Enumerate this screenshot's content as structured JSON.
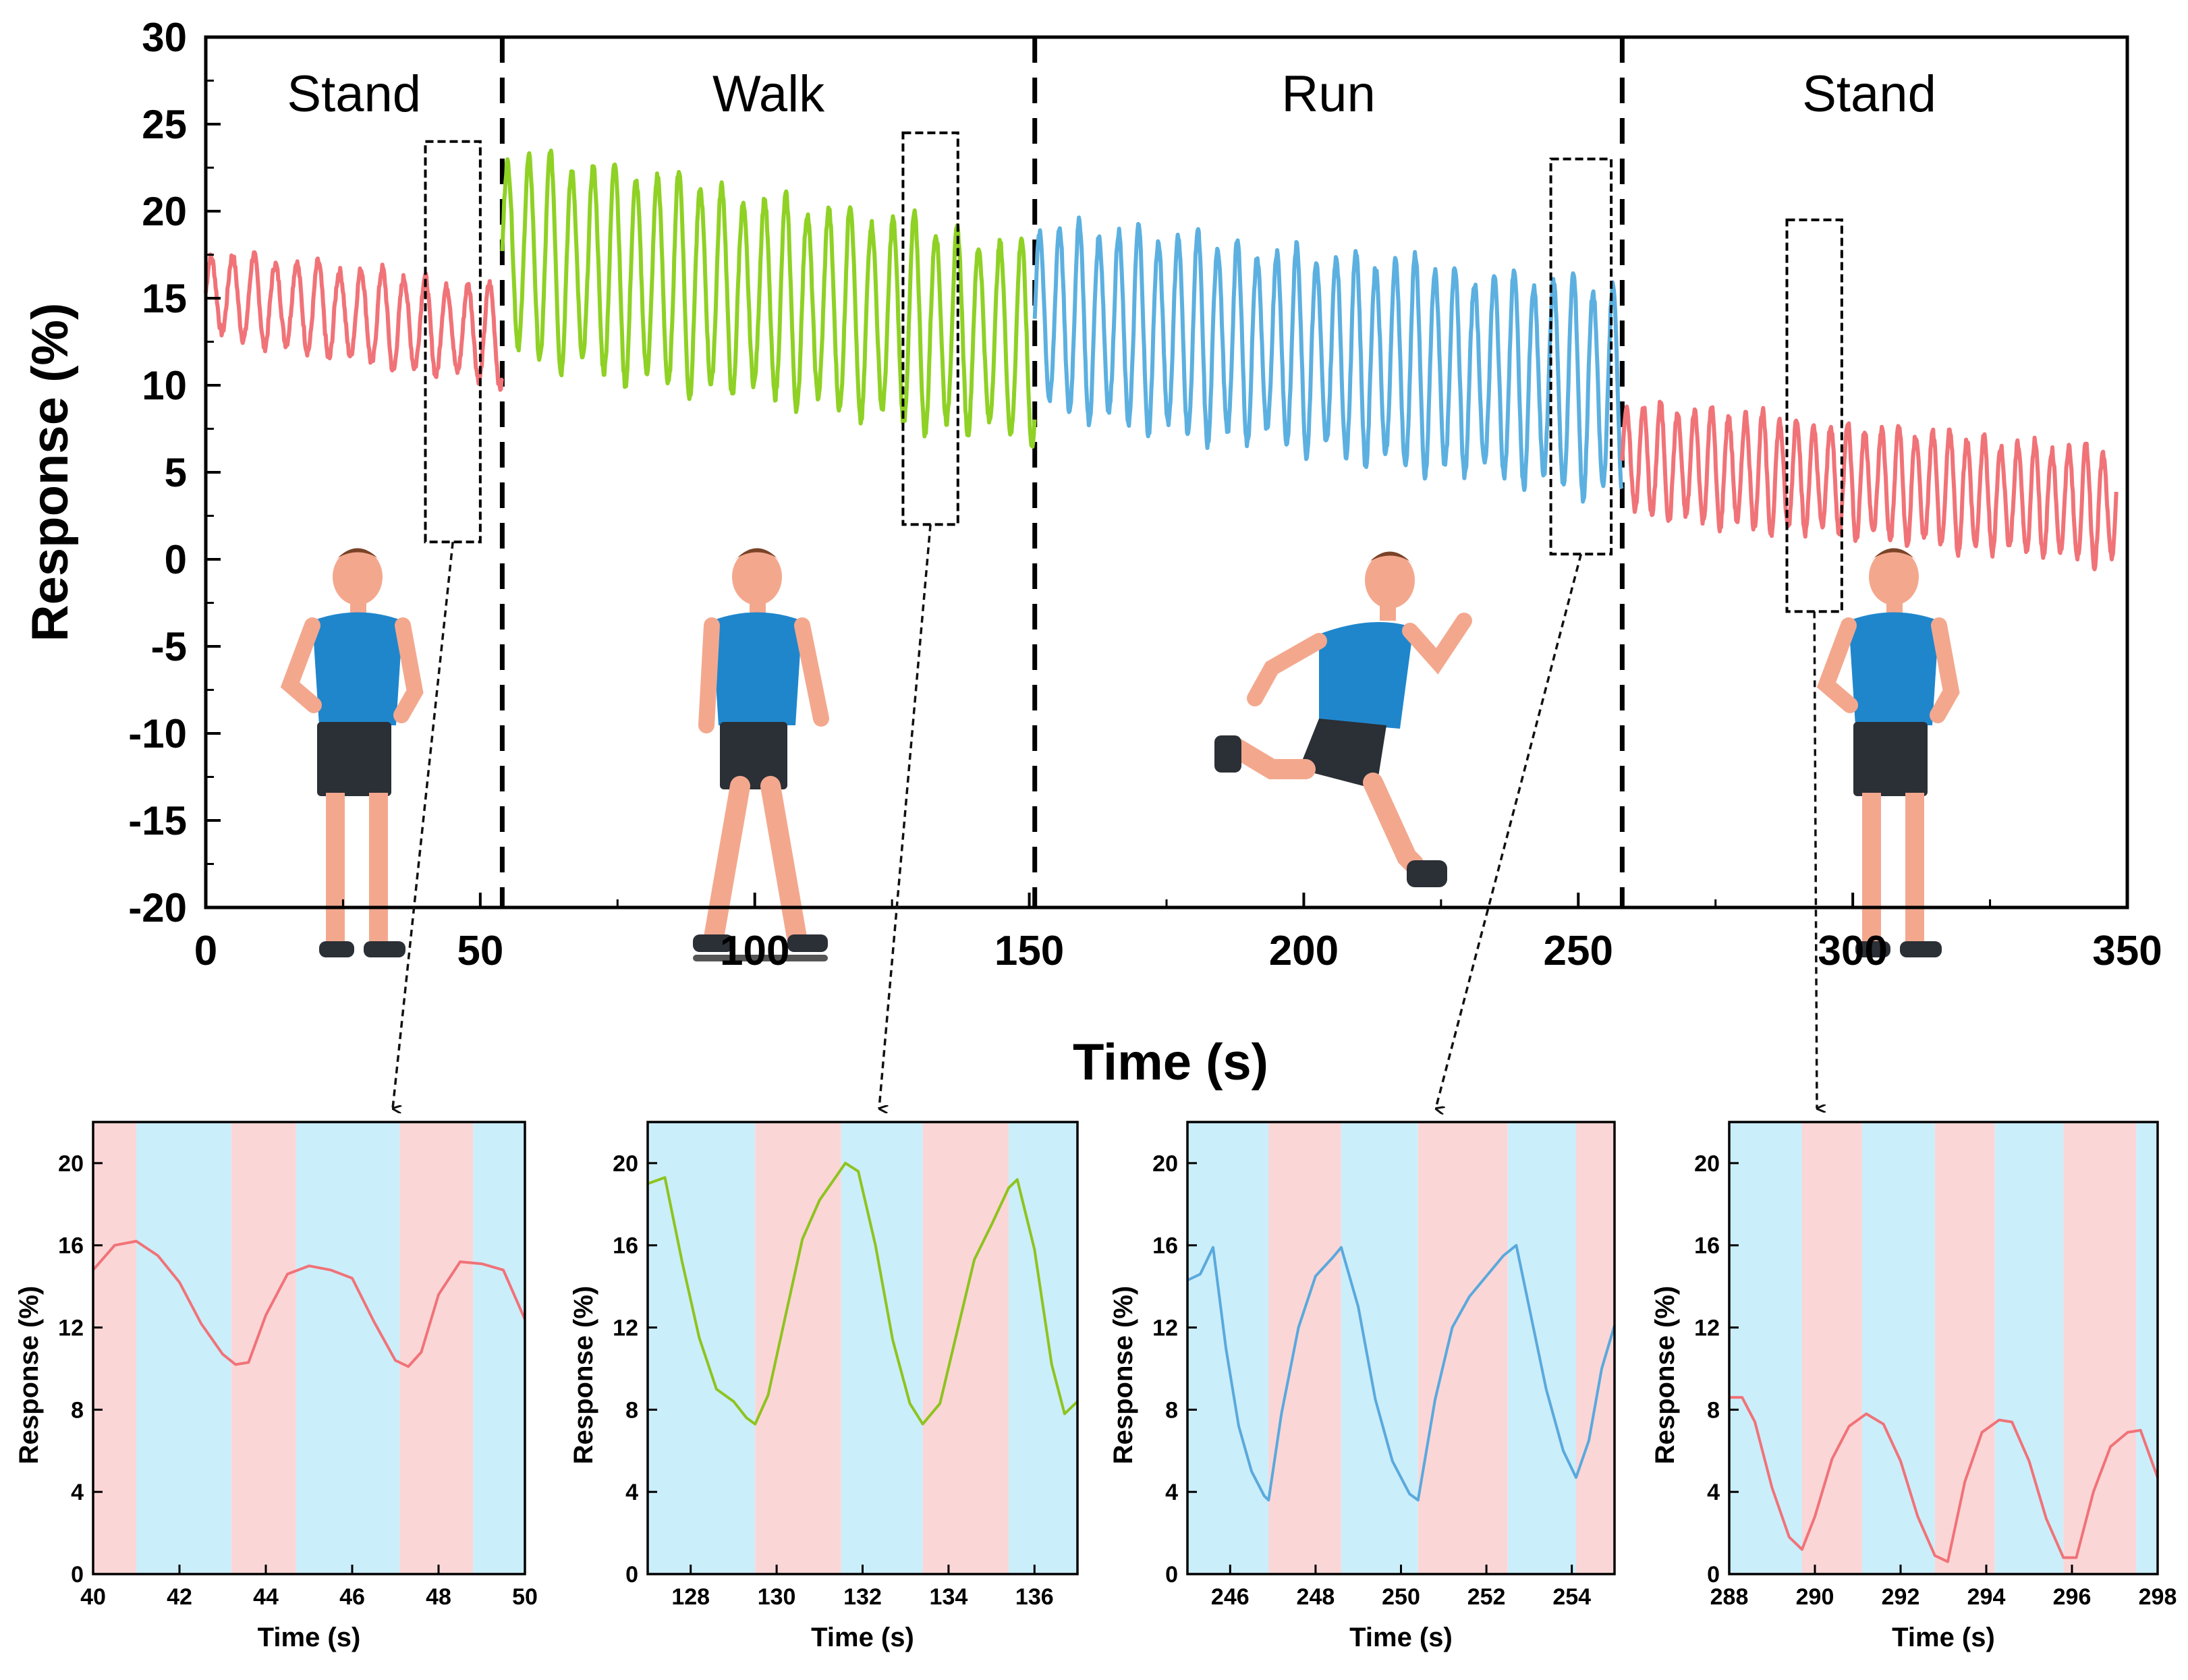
{
  "chart_data": [
    {
      "type": "line",
      "xlabel": "Time (s)",
      "ylabel": "Response (%)",
      "xlim": [
        0,
        350
      ],
      "ylim": [
        -20,
        30
      ],
      "xticks": [
        0,
        50,
        100,
        150,
        200,
        250,
        300,
        350
      ],
      "yticks": [
        -20,
        -15,
        -10,
        -5,
        0,
        5,
        10,
        15,
        20,
        25,
        30
      ],
      "phases": [
        {
          "label": "Stand",
          "start": 0,
          "end": 54,
          "color": "#f07378"
        },
        {
          "label": "Walk",
          "start": 54,
          "end": 151,
          "color": "#8fd125"
        },
        {
          "label": "Run",
          "start": 151,
          "end": 258,
          "color": "#5cb0e0"
        },
        {
          "label": "Stand",
          "start": 258,
          "end": 348,
          "color": "#f07378"
        }
      ],
      "dividers": [
        54,
        151,
        258
      ],
      "signal": [
        {
          "phase": 0,
          "start": 0,
          "end": 54,
          "period": 3.9,
          "center_start": 15.3,
          "center_end": 12.8,
          "amp_start": 2.4,
          "amp_end": 2.8
        },
        {
          "phase": 1,
          "start": 54,
          "end": 151,
          "period": 3.9,
          "center_start": 17.6,
          "center_end": 12.4,
          "amp_start": 6.0,
          "amp_end": 5.6
        },
        {
          "phase": 2,
          "start": 151,
          "end": 258,
          "period": 3.6,
          "center_start": 14.0,
          "center_end": 9.6,
          "amp_start": 5.4,
          "amp_end": 6.0
        },
        {
          "phase": 3,
          "start": 258,
          "end": 348,
          "period": 3.1,
          "center_start": 5.8,
          "center_end": 3.0,
          "amp_start": 3.2,
          "amp_end": 3.2
        }
      ],
      "zoom_windows": [
        {
          "x": [
            40,
            50
          ],
          "y": [
            1,
            24
          ]
        },
        {
          "x": [
            127,
            137
          ],
          "y": [
            2,
            24.5
          ]
        },
        {
          "x": [
            245,
            256
          ],
          "y": [
            0.3,
            23
          ]
        },
        {
          "x": [
            288,
            298
          ],
          "y": [
            -3,
            19.5
          ]
        }
      ]
    },
    {
      "type": "line",
      "xlabel": "Time (s)",
      "ylabel": "Response (%)",
      "xlim": [
        40,
        50
      ],
      "ylim": [
        0,
        22
      ],
      "xticks": [
        40,
        42,
        44,
        46,
        48,
        50
      ],
      "yticks": [
        0,
        4,
        8,
        12,
        16,
        20
      ],
      "color": "#f07378",
      "bands": [
        [
          40,
          41,
          "pink"
        ],
        [
          41,
          43.2,
          "blue"
        ],
        [
          43.2,
          44.7,
          "pink"
        ],
        [
          44.7,
          47.1,
          "blue"
        ],
        [
          47.1,
          48.8,
          "pink"
        ],
        [
          48.8,
          50,
          "blue"
        ]
      ],
      "x": [
        40,
        40.5,
        41,
        41.5,
        42,
        42.5,
        43,
        43.3,
        43.6,
        44,
        44.5,
        45,
        45.5,
        46,
        46.5,
        47,
        47.3,
        47.6,
        48,
        48.5,
        49,
        49.5,
        50
      ],
      "y": [
        14.8,
        16.0,
        16.2,
        15.5,
        14.2,
        12.2,
        10.7,
        10.2,
        10.3,
        12.6,
        14.6,
        15.0,
        14.8,
        14.4,
        12.3,
        10.4,
        10.1,
        10.8,
        13.6,
        15.2,
        15.1,
        14.8,
        12.4
      ]
    },
    {
      "type": "line",
      "xlabel": "Time (s)",
      "ylabel": "Response (%)",
      "xlim": [
        127,
        137
      ],
      "ylim": [
        0,
        22
      ],
      "xticks": [
        128,
        130,
        132,
        134,
        136
      ],
      "yticks": [
        0,
        4,
        8,
        12,
        16,
        20
      ],
      "color": "#8fc31f",
      "bands": [
        [
          127,
          129.5,
          "blue"
        ],
        [
          129.5,
          131.5,
          "pink"
        ],
        [
          131.5,
          133.4,
          "blue"
        ],
        [
          133.4,
          135.4,
          "pink"
        ],
        [
          135.4,
          137,
          "blue"
        ]
      ],
      "x": [
        127,
        127.4,
        127.8,
        128.2,
        128.6,
        129,
        129.3,
        129.5,
        129.8,
        130.2,
        130.6,
        131,
        131.4,
        131.6,
        131.9,
        132.3,
        132.7,
        133.1,
        133.4,
        133.8,
        134.2,
        134.6,
        135,
        135.4,
        135.6,
        136,
        136.4,
        136.7,
        137
      ],
      "y": [
        19.0,
        19.3,
        15.2,
        11.5,
        9.0,
        8.4,
        7.6,
        7.3,
        8.7,
        12.5,
        16.3,
        18.2,
        19.4,
        20.0,
        19.6,
        16.0,
        11.4,
        8.3,
        7.3,
        8.3,
        11.8,
        15.3,
        17.0,
        18.8,
        19.2,
        15.8,
        10.2,
        7.8,
        8.4
      ]
    },
    {
      "type": "line",
      "xlabel": "Time (s)",
      "ylabel": "Response (%)",
      "xlim": [
        245,
        255
      ],
      "ylim": [
        0,
        22
      ],
      "xticks": [
        246,
        248,
        250,
        252,
        254
      ],
      "yticks": [
        0,
        4,
        8,
        12,
        16,
        20
      ],
      "color": "#5aa9dc",
      "bands": [
        [
          245,
          246.9,
          "blue"
        ],
        [
          246.9,
          248.6,
          "pink"
        ],
        [
          248.6,
          250.4,
          "blue"
        ],
        [
          250.4,
          252.5,
          "pink"
        ],
        [
          252.5,
          254.1,
          "blue"
        ],
        [
          254.1,
          255,
          "pink"
        ]
      ],
      "x": [
        245,
        245.3,
        245.6,
        245.9,
        246.2,
        246.5,
        246.8,
        246.9,
        247.2,
        247.6,
        248,
        248.4,
        248.6,
        249,
        249.4,
        249.8,
        250.2,
        250.4,
        250.8,
        251.2,
        251.6,
        252,
        252.4,
        252.7,
        253,
        253.4,
        253.8,
        254.1,
        254.4,
        254.7,
        255
      ],
      "y": [
        14.3,
        14.6,
        15.9,
        11.0,
        7.2,
        5.0,
        3.8,
        3.6,
        7.8,
        12.0,
        14.5,
        15.4,
        15.9,
        13.0,
        8.5,
        5.5,
        3.9,
        3.6,
        8.5,
        12.0,
        13.5,
        14.5,
        15.5,
        16.0,
        13.0,
        9.0,
        6.0,
        4.7,
        6.5,
        10.0,
        12.1
      ]
    },
    {
      "type": "line",
      "xlabel": "Time (s)",
      "ylabel": "Response (%)",
      "xlim": [
        288,
        298
      ],
      "ylim": [
        0,
        22
      ],
      "xticks": [
        288,
        290,
        292,
        294,
        296,
        298
      ],
      "yticks": [
        0,
        4,
        8,
        12,
        16,
        20
      ],
      "color": "#f07378",
      "bands": [
        [
          288,
          289.7,
          "blue"
        ],
        [
          289.7,
          291.1,
          "pink"
        ],
        [
          291.1,
          292.8,
          "blue"
        ],
        [
          292.8,
          294.2,
          "pink"
        ],
        [
          294.2,
          295.8,
          "blue"
        ],
        [
          295.8,
          297.5,
          "pink"
        ],
        [
          297.5,
          298,
          "blue"
        ]
      ],
      "x": [
        288,
        288.3,
        288.6,
        289,
        289.4,
        289.7,
        290,
        290.4,
        290.8,
        291.2,
        291.6,
        292,
        292.4,
        292.8,
        293.1,
        293.5,
        293.9,
        294.3,
        294.6,
        295,
        295.4,
        295.8,
        296.1,
        296.5,
        296.9,
        297.3,
        297.6,
        298
      ],
      "y": [
        8.6,
        8.6,
        7.4,
        4.2,
        1.8,
        1.2,
        2.8,
        5.6,
        7.2,
        7.8,
        7.3,
        5.5,
        2.8,
        0.9,
        0.6,
        4.5,
        6.9,
        7.5,
        7.4,
        5.5,
        2.7,
        0.8,
        0.8,
        4.0,
        6.2,
        6.9,
        7.0,
        4.7
      ]
    }
  ]
}
